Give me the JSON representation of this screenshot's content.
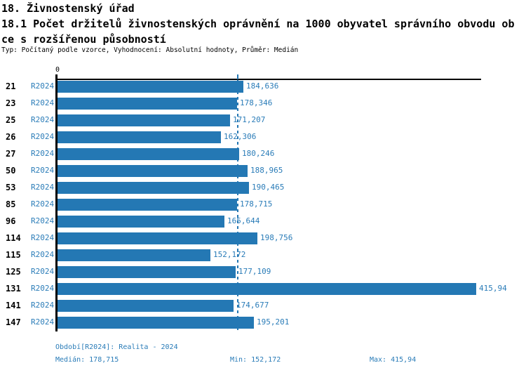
{
  "header": {
    "title": "18. Živnostenský úřad",
    "subtitle_line1": "18.1 Počet držitelů živnostenských oprávnění na 1000 obyvatel správního obvodu ob",
    "subtitle_line2": "ce s rozšířenou působností",
    "meta": "Typ: Počítaný podle vzorce, Vyhodnocení: Absolutní hodnoty, Průměr: Medián"
  },
  "chart_data": {
    "type": "bar",
    "orientation": "horizontal",
    "categories": [
      "21",
      "23",
      "25",
      "26",
      "27",
      "50",
      "53",
      "85",
      "96",
      "114",
      "115",
      "125",
      "131",
      "141",
      "147"
    ],
    "series_label": "R2024",
    "values": [
      184.636,
      178.346,
      171.207,
      162.306,
      180.246,
      188.965,
      190.465,
      178.715,
      165.644,
      198.756,
      152.172,
      177.109,
      415.94,
      174.677,
      195.201
    ],
    "value_labels": [
      "184,636",
      "178,346",
      "171,207",
      "162,306",
      "180,246",
      "188,965",
      "190,465",
      "178,715",
      "165,644",
      "198,756",
      "152,172",
      "177,109",
      "415,94",
      "174,677",
      "195,201"
    ],
    "xlabel": "",
    "ylabel": "",
    "xlim": [
      0,
      421
    ],
    "zero_label": "0",
    "grid": false,
    "median": {
      "value": 178.715,
      "label": "178,715"
    },
    "colors": {
      "bar": "#2478B4",
      "blue_text": "#2A7CB8",
      "axis": "#000000",
      "median_line": "#2478B4"
    }
  },
  "footer": {
    "period": "Období[R2024]: Realita - 2024",
    "median": "Medián: 178,715",
    "min": "Min: 152,172",
    "max": "Max: 415,94"
  }
}
